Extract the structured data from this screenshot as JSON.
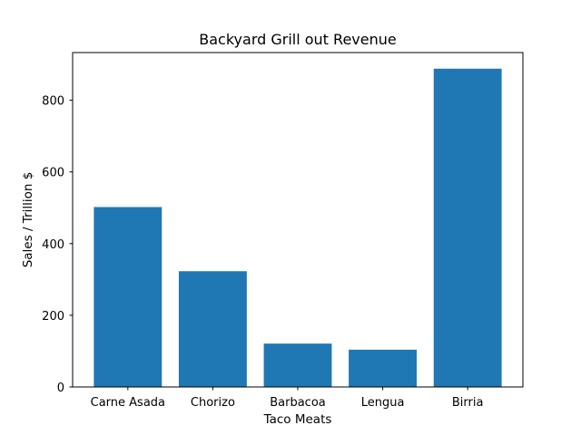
{
  "chart_data": {
    "type": "bar",
    "title": "Backyard Grill out Revenue",
    "xlabel": "Taco Meats",
    "ylabel": "Sales / Trillion $",
    "categories": [
      "Carne Asada",
      "Chorizo",
      "Barbacoa",
      "Lengua",
      "Birria"
    ],
    "values": [
      502,
      323,
      121,
      104,
      888
    ],
    "ylim": [
      0,
      933
    ],
    "yticks": [
      0,
      200,
      400,
      600,
      800
    ],
    "ytick_labels": [
      "0",
      "200",
      "400",
      "600",
      "800"
    ],
    "bar_color": "#1f77b4",
    "grid": false,
    "legend": "none"
  }
}
